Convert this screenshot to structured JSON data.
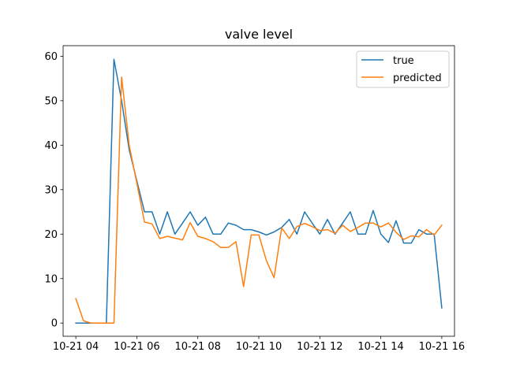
{
  "chart_data": {
    "type": "line",
    "title": "valve level",
    "xlabel": "",
    "ylabel": "",
    "x_kind": "datetime",
    "x_ticks": [
      {
        "value": "2023-10-21 04:00",
        "label": "10-21 04"
      },
      {
        "value": "2023-10-21 06:00",
        "label": "10-21 06"
      },
      {
        "value": "2023-10-21 08:00",
        "label": "10-21 08"
      },
      {
        "value": "2023-10-21 10:00",
        "label": "10-21 10"
      },
      {
        "value": "2023-10-21 12:00",
        "label": "10-21 12"
      },
      {
        "value": "2023-10-21 14:00",
        "label": "10-21 14"
      },
      {
        "value": "2023-10-21 16:00",
        "label": "10-21 16"
      }
    ],
    "y_ticks": [
      0,
      10,
      20,
      30,
      40,
      50,
      60
    ],
    "xlim": [
      "2023-10-21 03:35",
      "2023-10-21 16:25"
    ],
    "ylim": [
      -2.97,
      62.37
    ],
    "grid": false,
    "legend_position": "top-right",
    "x": [
      "2023-10-21 04:00",
      "2023-10-21 04:15",
      "2023-10-21 04:30",
      "2023-10-21 04:45",
      "2023-10-21 05:00",
      "2023-10-21 05:15",
      "2023-10-21 05:30",
      "2023-10-21 05:45",
      "2023-10-21 06:00",
      "2023-10-21 06:15",
      "2023-10-21 06:30",
      "2023-10-21 06:45",
      "2023-10-21 07:00",
      "2023-10-21 07:15",
      "2023-10-21 07:30",
      "2023-10-21 07:45",
      "2023-10-21 08:00",
      "2023-10-21 08:15",
      "2023-10-21 08:30",
      "2023-10-21 08:45",
      "2023-10-21 09:00",
      "2023-10-21 09:15",
      "2023-10-21 09:30",
      "2023-10-21 09:45",
      "2023-10-21 10:00",
      "2023-10-21 10:15",
      "2023-10-21 10:30",
      "2023-10-21 10:45",
      "2023-10-21 11:00",
      "2023-10-21 11:15",
      "2023-10-21 11:30",
      "2023-10-21 11:45",
      "2023-10-21 12:00",
      "2023-10-21 12:15",
      "2023-10-21 12:30",
      "2023-10-21 12:45",
      "2023-10-21 13:00",
      "2023-10-21 13:15",
      "2023-10-21 13:30",
      "2023-10-21 13:45",
      "2023-10-21 14:00",
      "2023-10-21 14:15",
      "2023-10-21 14:30",
      "2023-10-21 14:45",
      "2023-10-21 15:00",
      "2023-10-21 15:15",
      "2023-10-21 15:30",
      "2023-10-21 15:45",
      "2023-10-21 16:00"
    ],
    "series": [
      {
        "name": "true",
        "color": "#1f77b4",
        "values": [
          0,
          0,
          0,
          0,
          0,
          59.3,
          50,
          39,
          32,
          25,
          25,
          20,
          25,
          20,
          22.5,
          25,
          22,
          23.8,
          20,
          20,
          22.5,
          22,
          21,
          21,
          20.5,
          19.8,
          20.5,
          21.5,
          23.3,
          20,
          25,
          22.5,
          20,
          23.3,
          20,
          22.5,
          25,
          20,
          20,
          25.3,
          20,
          18.1,
          23,
          18,
          18,
          21,
          20,
          20,
          3.4
        ]
      },
      {
        "name": "predicted",
        "color": "#ff7f0e",
        "values": [
          5.5,
          0.5,
          0,
          0,
          0,
          0,
          55.3,
          40,
          31.5,
          22.7,
          22.3,
          19,
          19.5,
          19.1,
          18.7,
          22.6,
          19.5,
          19,
          18.3,
          17,
          17,
          18.3,
          8.2,
          19.8,
          19.8,
          14,
          10.2,
          21.4,
          19,
          21.7,
          22.4,
          21.7,
          20.8,
          21,
          20.2,
          22,
          20.6,
          21.5,
          22.5,
          22.5,
          21.6,
          22.5,
          20.4,
          18.8,
          19.6,
          19.4,
          21,
          19.8,
          22
        ]
      }
    ]
  }
}
